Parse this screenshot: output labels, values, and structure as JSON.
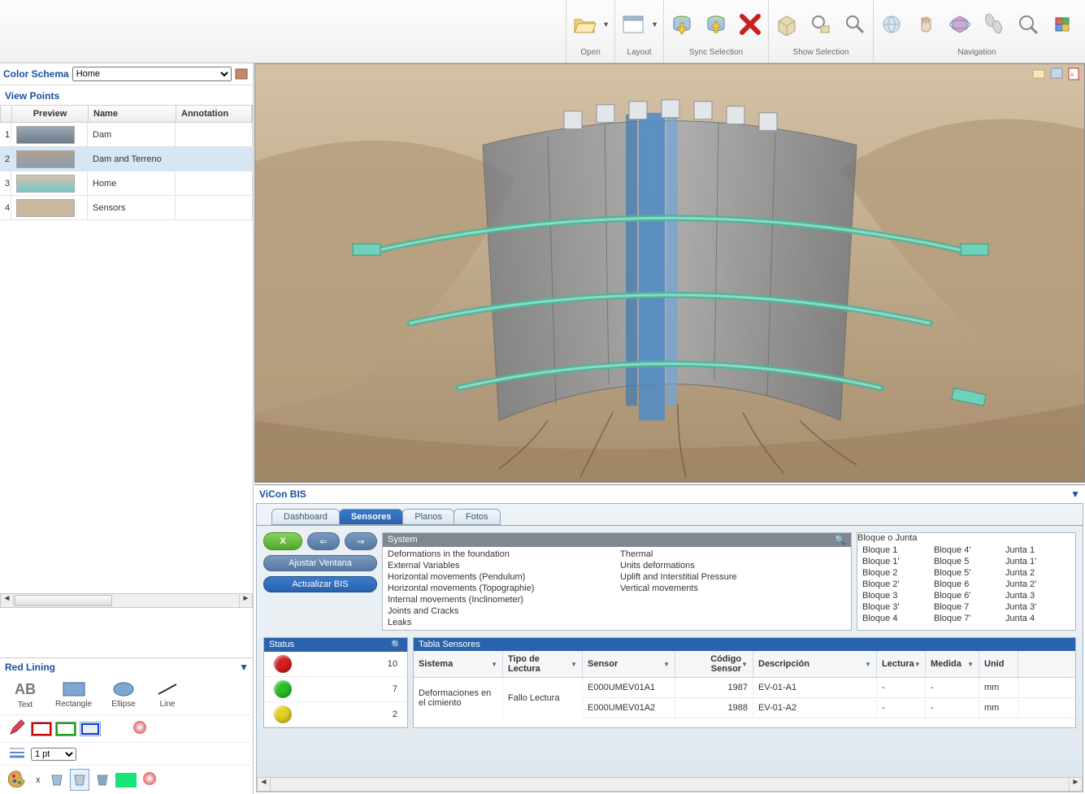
{
  "toolbar": {
    "groups": [
      {
        "id": "open",
        "label": "Open"
      },
      {
        "id": "layout",
        "label": "Layout"
      },
      {
        "id": "sync",
        "label": "Sync Selection"
      },
      {
        "id": "show",
        "label": "Show Selection"
      },
      {
        "id": "nav",
        "label": "Navigation"
      }
    ]
  },
  "colorSchema": {
    "label": "Color Schema",
    "value": "Home"
  },
  "viewPoints": {
    "header": "View Points",
    "cols": {
      "preview": "Preview",
      "name": "Name",
      "annotation": "Annotation"
    },
    "rows": [
      {
        "idx": "1",
        "name": "Dam",
        "annotation": ""
      },
      {
        "idx": "2",
        "name": "Dam and Terreno",
        "annotation": ""
      },
      {
        "idx": "3",
        "name": "Home",
        "annotation": ""
      },
      {
        "idx": "4",
        "name": "Sensors",
        "annotation": ""
      }
    ],
    "selectedIndex": 1
  },
  "redLining": {
    "header": "Red Lining",
    "tools": {
      "text": "Text",
      "rectangle": "Rectangle",
      "ellipse": "Ellipse",
      "line": "Line"
    },
    "lineWeight": "1 pt",
    "x": "x",
    "strokeColors": [
      "#d40000",
      "#18a618",
      "#1838d4"
    ],
    "activeStrokeIndex": 2,
    "fillSwatch": "#17e477"
  },
  "viewport": {
    "colors": {
      "terrain": "#c7b69d",
      "terrainDark": "#a78e6e",
      "dam": "#8a929b",
      "damLight": "#b8bec5",
      "water": "#4d8bc7",
      "pipe": "#6fd1b9"
    }
  },
  "vicon": {
    "title": "ViCon BIS",
    "tabs": [
      "Dashboard",
      "Sensores",
      "Planos",
      "Fotos"
    ],
    "activeTab": 1,
    "buttons": {
      "close": "X",
      "prev": "⇐",
      "next": "⇒",
      "ajustar": "Ajustar Ventana",
      "actualizar": "Actualizar BIS"
    },
    "system": {
      "caption": "System",
      "col1": [
        "Deformations in the foundation",
        "External Variables",
        "Horizontal movements (Pendulum)",
        "Horizontal movements (Topographie)",
        "Internal movements (Inclinometer)",
        "Joints and Cracks",
        "Leaks"
      ],
      "col2": [
        "Thermal",
        "Units deformations",
        "Uplift and Interstitial Pressure",
        "Vertical movements"
      ]
    },
    "bloque": {
      "caption": "Bloque o Junta",
      "col1": [
        "Bloque 1",
        "Bloque 1'",
        "Bloque 2",
        "Bloque 2'",
        "Bloque 3",
        "Bloque 3'",
        "Bloque 4"
      ],
      "col2": [
        "Bloque 4'",
        "Bloque 5",
        "Bloque 5'",
        "Bloque 6",
        "Bloque 6'",
        "Bloque 7",
        "Bloque 7'"
      ],
      "col3": [
        "Junta 1",
        "Junta 1'",
        "Junta 2",
        "Junta 2'",
        "Junta 3",
        "Junta 3'",
        "Junta 4"
      ]
    },
    "status": {
      "caption": "Status",
      "rows": [
        {
          "color": "#d42020",
          "count": "10"
        },
        {
          "color": "#28c028",
          "count": "7"
        },
        {
          "color": "#e6d020",
          "count": "2"
        }
      ]
    },
    "tabla": {
      "caption": "Tabla Sensores",
      "headers": {
        "sistema": "Sistema",
        "tipo": "Tipo de Lectura",
        "sensor": "Sensor",
        "codigo": "Código Sensor",
        "desc": "Descripción",
        "lectura": "Lectura",
        "medida": "Medida",
        "unid": "Unid"
      },
      "sistemaValue": "Deformaciones en el cimiento",
      "tipoValue": "Fallo Lectura",
      "rows": [
        {
          "sensor": "E000UMEV01A1",
          "codigo": "1987",
          "desc": "EV-01-A1",
          "lectura": "-",
          "medida": "-",
          "unid": "mm"
        },
        {
          "sensor": "E000UMEV01A2",
          "codigo": "1988",
          "desc": "EV-01-A2",
          "lectura": "-",
          "medida": "-",
          "unid": "mm"
        }
      ]
    }
  }
}
